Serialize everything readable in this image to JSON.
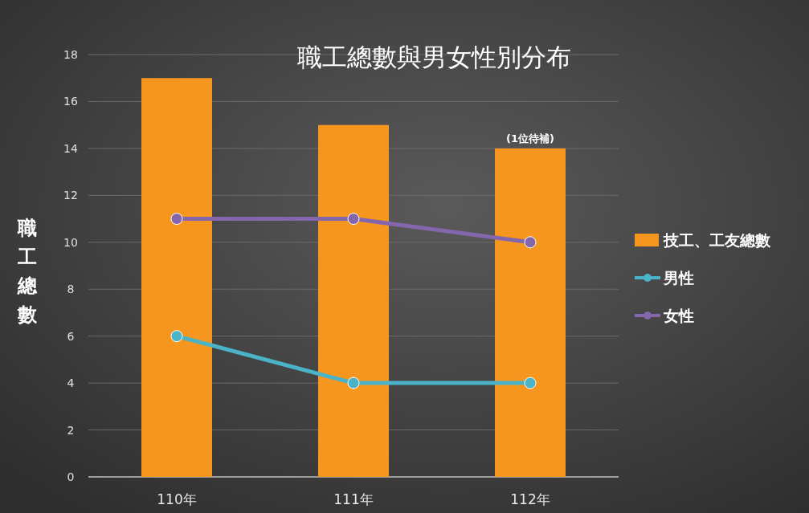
{
  "chart_data": {
    "type": "bar",
    "title": "職工總數與男女性別分布",
    "ylabel": "職工總數",
    "categories": [
      "110年",
      "111年",
      "112年"
    ],
    "series": [
      {
        "name": "技工、工友總數",
        "color": "#f7961e",
        "values": [
          17,
          15,
          14
        ]
      },
      {
        "name": "男性",
        "type": "line",
        "color": "#4bb3c8",
        "values": [
          6,
          4,
          4
        ]
      },
      {
        "name": "女性",
        "type": "line",
        "color": "#8466ad",
        "values": [
          11,
          11,
          10
        ]
      }
    ],
    "ylim": [
      0,
      18
    ],
    "yticks": [
      0,
      2,
      4,
      6,
      8,
      10,
      12,
      14,
      16,
      18
    ],
    "grid": "y",
    "legend": "right",
    "marker": "circle",
    "annotations": [
      {
        "text": "(1位待補)",
        "x": "112年",
        "y": 14
      }
    ]
  }
}
